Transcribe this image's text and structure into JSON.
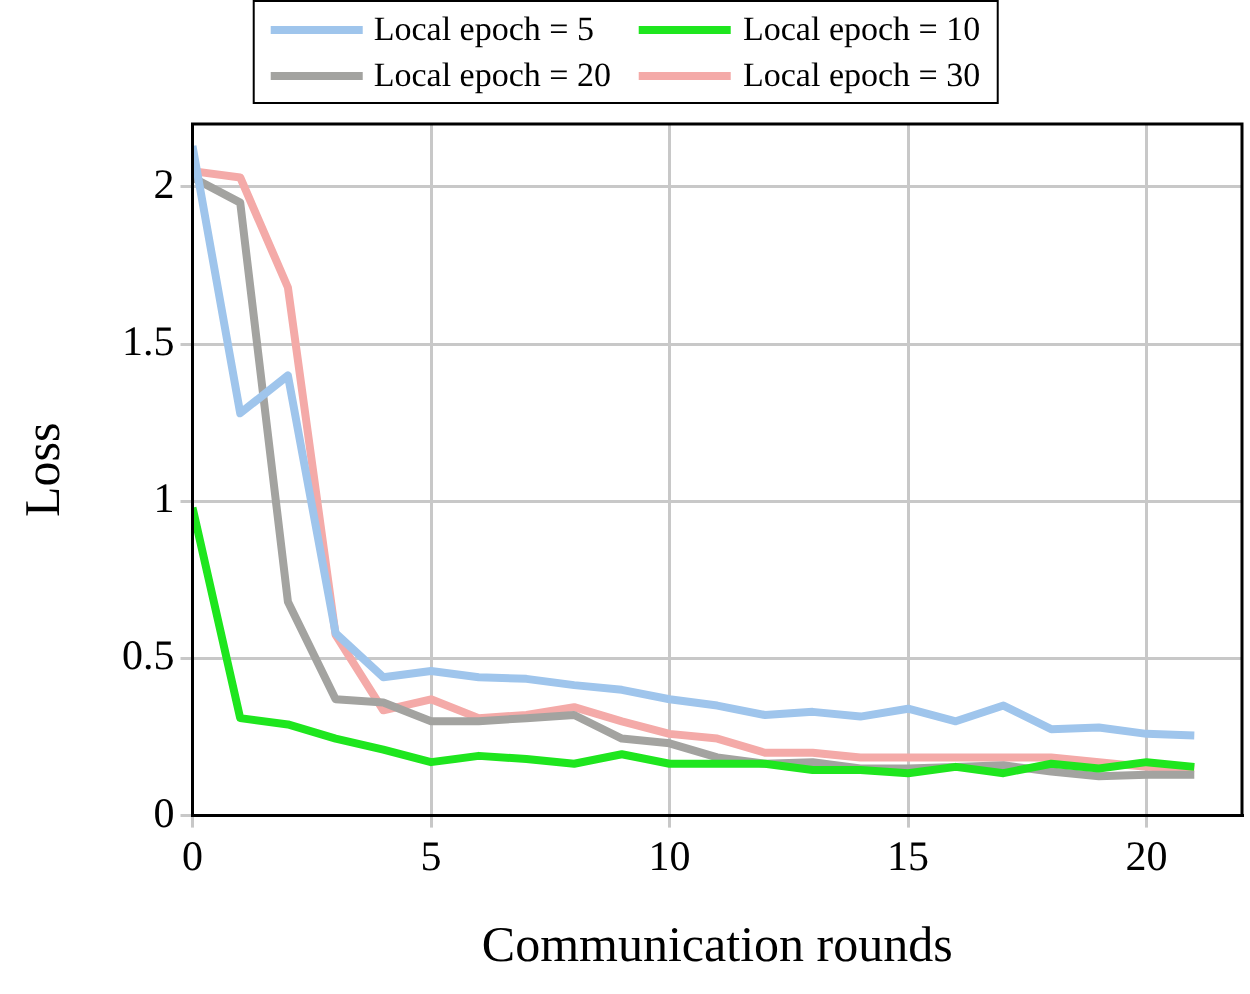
{
  "chart_data": {
    "type": "line",
    "xlabel": "Communication rounds",
    "ylabel": "Loss",
    "x": [
      0,
      1,
      2,
      3,
      4,
      5,
      6,
      7,
      8,
      9,
      10,
      11,
      12,
      13,
      14,
      15,
      16,
      17,
      18,
      19,
      20,
      21
    ],
    "xlim": [
      0,
      22
    ],
    "xticks": [
      0,
      5,
      10,
      15,
      20
    ],
    "ylim": [
      0,
      2.2
    ],
    "yticks": [
      0,
      0.5,
      1,
      1.5,
      2
    ],
    "grid": true,
    "legend": "top",
    "marker": "none",
    "line_style": "solid",
    "series": [
      {
        "name": "Local epoch = 5",
        "color": "#9fc5ec",
        "values": [
          2.13,
          1.28,
          1.4,
          0.58,
          0.44,
          0.46,
          0.44,
          0.435,
          0.415,
          0.4,
          0.37,
          0.35,
          0.32,
          0.33,
          0.315,
          0.34,
          0.3,
          0.35,
          0.275,
          0.28,
          0.26,
          0.255
        ]
      },
      {
        "name": "Local epoch = 10",
        "color": "#1ee61e",
        "values": [
          0.98,
          0.31,
          0.29,
          0.245,
          0.21,
          0.17,
          0.19,
          0.18,
          0.165,
          0.195,
          0.165,
          0.165,
          0.165,
          0.145,
          0.145,
          0.135,
          0.155,
          0.135,
          0.165,
          0.15,
          0.17,
          0.155
        ]
      },
      {
        "name": "Local epoch = 20",
        "color": "#a3a3a0",
        "values": [
          2.03,
          1.95,
          0.68,
          0.37,
          0.36,
          0.3,
          0.3,
          0.31,
          0.32,
          0.245,
          0.23,
          0.185,
          0.165,
          0.17,
          0.15,
          0.15,
          0.155,
          0.16,
          0.14,
          0.125,
          0.13,
          0.13
        ]
      },
      {
        "name": "Local epoch = 30",
        "color": "#f4aaa8",
        "values": [
          2.05,
          2.03,
          1.68,
          0.575,
          0.335,
          0.37,
          0.31,
          0.32,
          0.345,
          0.3,
          0.26,
          0.245,
          0.2,
          0.2,
          0.185,
          0.185,
          0.185,
          0.185,
          0.185,
          0.17,
          0.155,
          0.15
        ]
      }
    ]
  }
}
